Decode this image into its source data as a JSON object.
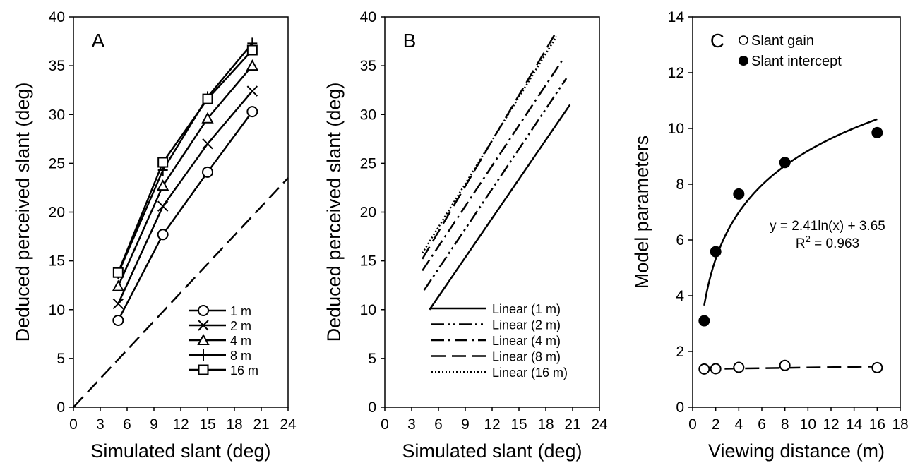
{
  "chart_data": [
    {
      "panel_label": "A",
      "type": "line",
      "xlabel": "Simulated slant (deg)",
      "ylabel": "Deduced perceived slant (deg)",
      "xlim": [
        0,
        24
      ],
      "ylim": [
        0,
        40
      ],
      "xticks": [
        0,
        3,
        6,
        9,
        12,
        15,
        18,
        21,
        24
      ],
      "yticks": [
        0,
        5,
        10,
        15,
        20,
        25,
        30,
        35,
        40
      ],
      "legend_position": "bottom-right",
      "series": [
        {
          "name": "1 m",
          "marker": "circle",
          "x": [
            5,
            10,
            15,
            20
          ],
          "y": [
            8.9,
            17.7,
            24.1,
            30.3
          ]
        },
        {
          "name": "2 m",
          "marker": "x",
          "x": [
            5,
            10,
            15,
            20
          ],
          "y": [
            10.6,
            20.6,
            27.0,
            32.4
          ]
        },
        {
          "name": "4 m",
          "marker": "triangle",
          "x": [
            5,
            10,
            15,
            20
          ],
          "y": [
            12.4,
            22.7,
            29.6,
            35.0
          ]
        },
        {
          "name": "8 m",
          "marker": "plus",
          "x": [
            5,
            10,
            15,
            20
          ],
          "y": [
            13.7,
            24.3,
            31.8,
            37.3
          ]
        },
        {
          "name": "16 m",
          "marker": "square",
          "x": [
            5,
            10,
            15,
            20
          ],
          "y": [
            13.8,
            25.1,
            31.6,
            36.6
          ]
        }
      ],
      "reference_line": {
        "style": "dashed",
        "x": [
          0,
          24
        ],
        "y": [
          0,
          23.5
        ]
      }
    },
    {
      "panel_label": "B",
      "type": "line",
      "xlabel": "Simulated slant (deg)",
      "ylabel": "Deduced perceived slant (deg)",
      "xlim": [
        0,
        24
      ],
      "ylim": [
        0,
        40
      ],
      "xticks": [
        0,
        3,
        6,
        9,
        12,
        15,
        18,
        21,
        24
      ],
      "yticks": [
        0,
        5,
        10,
        15,
        20,
        25,
        30,
        35,
        40
      ],
      "legend_position": "bottom-right",
      "series": [
        {
          "name": "Linear (1 m)",
          "dash": "solid",
          "x": [
            5,
            20.7
          ],
          "y": [
            10.0,
            31.0
          ]
        },
        {
          "name": "Linear (2 m)",
          "dash": "dash-dot-dot",
          "x": [
            4.4,
            20.3
          ],
          "y": [
            12.0,
            33.7
          ]
        },
        {
          "name": "Linear (4 m)",
          "dash": "dash-dot",
          "x": [
            4.2,
            19.8
          ],
          "y": [
            14.0,
            35.5
          ]
        },
        {
          "name": "Linear (8 m)",
          "dash": "dashed",
          "x": [
            4.2,
            19.0
          ],
          "y": [
            15.2,
            38.2
          ]
        },
        {
          "name": "Linear (16 m)",
          "dash": "dotted",
          "x": [
            4.2,
            19.2
          ],
          "y": [
            15.8,
            38.0
          ]
        }
      ]
    },
    {
      "panel_label": "C",
      "type": "scatter",
      "xlabel": "Viewing distance (m)",
      "ylabel": "Model parameters",
      "xlim": [
        0,
        18
      ],
      "ylim": [
        0,
        14
      ],
      "xticks": [
        0,
        2,
        4,
        6,
        8,
        10,
        12,
        14,
        16,
        18
      ],
      "yticks": [
        0,
        2,
        4,
        6,
        8,
        10,
        12,
        14
      ],
      "legend_position": "top",
      "series": [
        {
          "name": "Slant gain",
          "marker": "open-circle",
          "x": [
            1,
            2,
            4,
            8,
            16
          ],
          "y": [
            1.37,
            1.38,
            1.43,
            1.5,
            1.42
          ]
        },
        {
          "name": "Slant intercept",
          "marker": "filled-circle",
          "x": [
            1,
            2,
            4,
            8,
            16
          ],
          "y": [
            3.1,
            5.58,
            7.65,
            8.78,
            9.85
          ]
        }
      ],
      "trendlines": [
        {
          "series": "Slant intercept",
          "kind": "logarithmic",
          "a": 2.41,
          "b": 3.65,
          "x_range": [
            1,
            16
          ],
          "style": "solid"
        },
        {
          "series": "Slant gain",
          "kind": "linear",
          "x": [
            1,
            16
          ],
          "y": [
            1.37,
            1.46
          ],
          "style": "dashed"
        }
      ],
      "annotation": {
        "equation": "y = 2.41ln(x) + 3.65",
        "r2_prefix": "R",
        "r2_sup": "2",
        "r2_suffix": " = 0.963"
      }
    }
  ]
}
